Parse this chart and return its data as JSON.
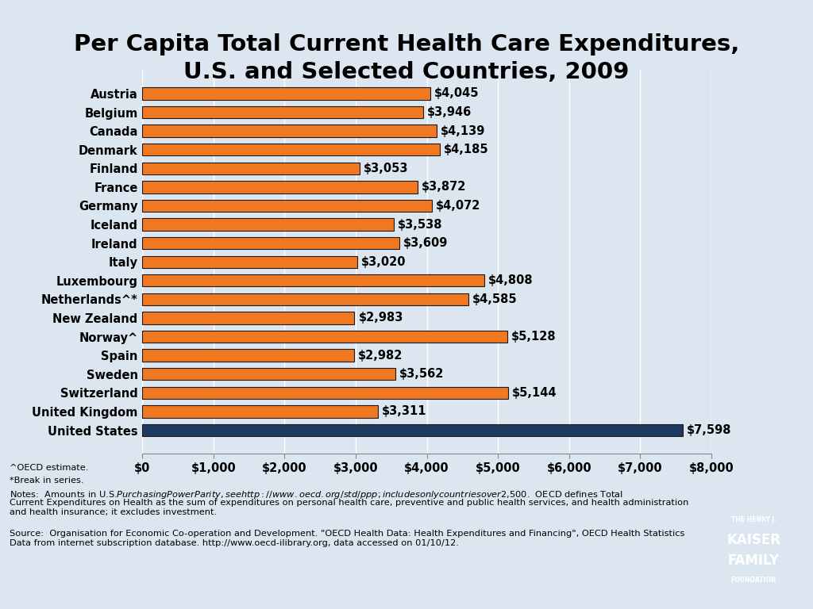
{
  "title": "Per Capita Total Current Health Care Expenditures,\nU.S. and Selected Countries, 2009",
  "title_fontsize": 21,
  "background_color": "#dce6f1",
  "categories": [
    "Austria",
    "Belgium",
    "Canada",
    "Denmark",
    "Finland",
    "France",
    "Germany",
    "Iceland",
    "Ireland",
    "Italy",
    "Luxembourg",
    "Netherlands^*",
    "New Zealand",
    "Norway^",
    "Spain",
    "Sweden",
    "Switzerland",
    "United Kingdom",
    "United States"
  ],
  "values": [
    4045,
    3946,
    4139,
    4185,
    3053,
    3872,
    4072,
    3538,
    3609,
    3020,
    4808,
    4585,
    2983,
    5128,
    2982,
    3562,
    5144,
    3311,
    7598
  ],
  "bar_colors": [
    "#f07820",
    "#f07820",
    "#f07820",
    "#f07820",
    "#f07820",
    "#f07820",
    "#f07820",
    "#f07820",
    "#f07820",
    "#f07820",
    "#f07820",
    "#f07820",
    "#f07820",
    "#f07820",
    "#f07820",
    "#f07820",
    "#f07820",
    "#f07820",
    "#1e3a5f"
  ],
  "bar_edge_color": "#1a1a1a",
  "xlim": [
    0,
    8000
  ],
  "xticks": [
    0,
    1000,
    2000,
    3000,
    4000,
    5000,
    6000,
    7000,
    8000
  ],
  "xtick_labels": [
    "$0",
    "$1,000",
    "$2,000",
    "$3,000",
    "$4,000",
    "$5,000",
    "$6,000",
    "$7,000",
    "$8,000"
  ],
  "value_labels": [
    "$4,045",
    "$3,946",
    "$4,139",
    "$4,185",
    "$3,053",
    "$3,872",
    "$4,072",
    "$3,538",
    "$3,609",
    "$3,020",
    "$4,808",
    "$4,585",
    "$2,983",
    "$5,128",
    "$2,982",
    "$3,562",
    "$5,144",
    "$3,311",
    "$7,598"
  ],
  "footnote1": "^OECD estimate.",
  "footnote2": "*Break in series.",
  "footnote3": "Notes:  Amounts in U.S.$ Purchasing Power Parity, see http://www.oecd.org/std/ppp; includes only countries over $2,500.  OECD defines Total Current Expenditures on Health as the sum of expenditures on personal health care, preventive and public health services, and health administration and health insurance; it excludes investment.",
  "footnote4": "Source:  Organisation for Economic Co-operation and Development. \"OECD Health Data: Health Expenditures and Financing\", OECD Health Statistics Data from internet subscription database. http://www.oecd-ilibrary.org, data accessed on 01/10/12.",
  "tick_fontsize": 10.5,
  "bar_label_fontsize": 10.5,
  "category_fontsize": 10.5
}
